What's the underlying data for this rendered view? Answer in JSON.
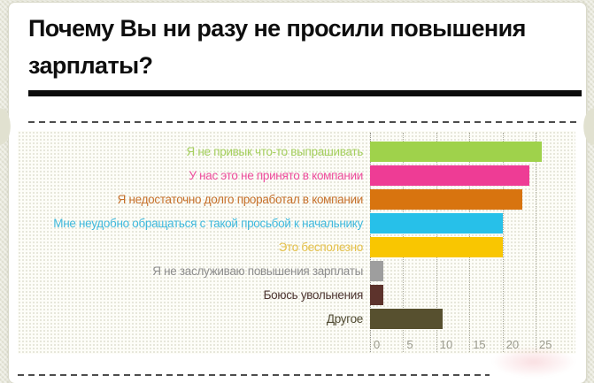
{
  "title": "Почему Вы ни разу не просили повышения зарплаты?",
  "chart_data": {
    "type": "bar",
    "orientation": "horizontal",
    "title": "Почему Вы ни разу не просили повышения зарплаты?",
    "categories": [
      "Я не привык что-то выпрашивать",
      "У нас это не принято в компании",
      "Я недостаточно долго проработал в компании",
      "Мне неудобно обращаться с такой просьбой к начальнику",
      "Это бесполезно",
      "Я не заслуживаю повышения зарплаты",
      "Боюсь увольнения",
      "Другое"
    ],
    "values": [
      26,
      24,
      23,
      20,
      20,
      2,
      2,
      11
    ],
    "bar_colors": [
      "#9fd24b",
      "#ee3c95",
      "#d8740f",
      "#27c0e9",
      "#f9c601",
      "#9e9e9e",
      "#5d332c",
      "#57502f"
    ],
    "label_colors": [
      "#a5cf5e",
      "#ee4d9d",
      "#c6702a",
      "#3fb9dd",
      "#e5c14a",
      "#8d8d8d",
      "#4c342f",
      "#4e4930"
    ],
    "x_ticks": [
      "0",
      "5",
      "10",
      "15",
      "20",
      "25"
    ],
    "x_tick_values": [
      0,
      5,
      10,
      15,
      20,
      25
    ],
    "xlim": [
      0,
      27
    ],
    "grid": "vertical-dotted",
    "legend": "none",
    "xlabel": "",
    "ylabel": ""
  },
  "theme": {
    "card_bg": "#ffffff",
    "page_bg": "#e8e8db",
    "title_color": "#0e0e0e",
    "separator_color": "#4d4d4d",
    "tick_color": "#9a9a8d",
    "watermark_color": "#e24e5c"
  }
}
